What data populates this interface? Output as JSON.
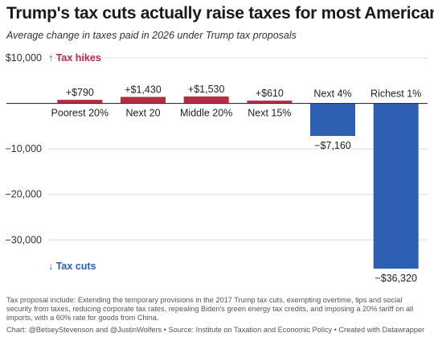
{
  "header": {
    "title": "Trump's tax cuts actually raise taxes for most Americans",
    "subtitle": "Average change in taxes paid in 2026 under Trump tax proposals"
  },
  "chart_data": {
    "type": "bar",
    "categories": [
      "Poorest 20%",
      "Next 20",
      "Middle 20%",
      "Next 15%",
      "Next 4%",
      "Richest 1%"
    ],
    "values": [
      790,
      1430,
      1530,
      610,
      -7160,
      -36320
    ],
    "value_labels": [
      "+$790",
      "+$1,430",
      "+$1,530",
      "+$610",
      "−$7,160",
      "−$36,320"
    ],
    "y_ticks": [
      {
        "value": 10000,
        "label": "$10,000"
      },
      {
        "value": -10000,
        "label": "−10,000"
      },
      {
        "value": -20000,
        "label": "−20,000"
      },
      {
        "value": -30000,
        "label": "−30,000"
      }
    ],
    "ylim": [
      -36320,
      10000
    ],
    "annotations": {
      "hikes": "↑ Tax hikes",
      "cuts": "↓ Tax cuts"
    },
    "colors": {
      "positive": "#b32e45",
      "negative": "#2d60b0",
      "hikes_text": "#b32e45",
      "cuts_text": "#2d60b0"
    },
    "grid": true
  },
  "footer": {
    "notes": "Tax proposal include: Extending the temporary provisions in the 2017 Trump tax cuts, exempting overtime, tips and social security from taxes, reducing corporate tax rates, repealing Biden's green energy tax credits, and imposing a 20% tariff on all imports, with a 60% rate for goods from China.",
    "credit": "Chart: @BetseyStevenson and @JustinWolfers • Source: Institute on Taxation and Economic Policy • Created with Datawrapper"
  }
}
